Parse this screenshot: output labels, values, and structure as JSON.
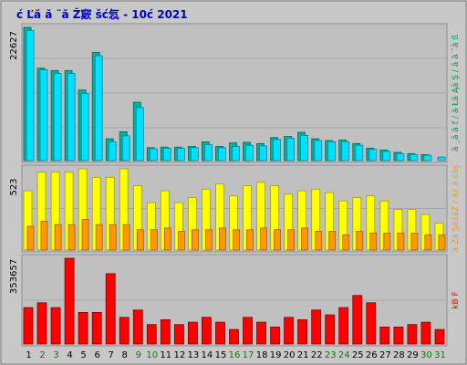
{
  "title": "ć Ľă  ă ¨ă Ž窽 šć忥  - 10ć   2021",
  "colors": {
    "outer_bg": "#c8c8c8",
    "plot_bg": "#c0c0c0",
    "title": "#0000cc",
    "cyan_bar": "#00e0ff",
    "cyan_bar_dark": "#00a0b8",
    "teal_bar": "#00b0a0",
    "yellow_bar": "#ffff00",
    "orange_bar": "#ff9900",
    "red_bar": "#ff0000",
    "weekend_label": "#008000",
    "weekday_label": "#000000"
  },
  "chart_data": [
    {
      "type": "bar",
      "panel": "top",
      "ymax_label": "22627",
      "categories": [
        "1",
        "2",
        "3",
        "4",
        "5",
        "6",
        "7",
        "8",
        "9",
        "10",
        "11",
        "12",
        "13",
        "14",
        "15",
        "16",
        "17",
        "18",
        "19",
        "20",
        "21",
        "22",
        "23",
        "24",
        "25",
        "26",
        "27",
        "28",
        "29",
        "30",
        "31"
      ],
      "weekend_days": [
        "2",
        "3",
        "9",
        "10",
        "16",
        "17",
        "23",
        "24",
        "30",
        "31"
      ],
      "series": [
        {
          "color": "teal",
          "values": [
            22627,
            15700,
            15300,
            15300,
            12000,
            18400,
            3700,
            4900,
            9900,
            2200,
            2300,
            2300,
            2400,
            3200,
            2400,
            3000,
            3100,
            2900,
            3900,
            4100,
            4800,
            3700,
            3400,
            3500,
            2900,
            2100,
            1800,
            1400,
            1200,
            1000,
            0
          ]
        },
        {
          "color": "cyan",
          "values": [
            22100,
            15400,
            14800,
            14800,
            11400,
            17800,
            3200,
            4200,
            9000,
            2000,
            2100,
            2100,
            2200,
            2700,
            2200,
            2400,
            2600,
            2500,
            3600,
            3800,
            4300,
            3400,
            3200,
            3200,
            2600,
            1900,
            1600,
            1200,
            1000,
            900,
            600
          ]
        }
      ],
      "right_legend": "ă ¸ă ­ă ť / ă Łă Ąă Ş / ă ­ă ¨ă ß",
      "right_legend_colors": [
        "#00a050",
        "#00b0a0",
        "#00e0ff"
      ]
    },
    {
      "type": "bar",
      "panel": "middle",
      "ymax_label": "523",
      "series": [
        {
          "color": "yellow",
          "values": [
            350,
            460,
            460,
            460,
            480,
            430,
            430,
            480,
            380,
            280,
            350,
            280,
            310,
            360,
            390,
            320,
            380,
            400,
            380,
            330,
            350,
            360,
            340,
            290,
            310,
            320,
            290,
            240,
            240,
            210,
            160
          ]
        },
        {
          "color": "orange",
          "values": [
            140,
            170,
            150,
            150,
            180,
            150,
            150,
            150,
            120,
            120,
            130,
            110,
            120,
            120,
            130,
            120,
            120,
            130,
            120,
            120,
            130,
            110,
            110,
            90,
            110,
            100,
            100,
            100,
            100,
            90,
            90
          ]
        }
      ],
      "right_legend": "ă Żă ŞăźăŻ / ăż ă śăş",
      "right_legend_colors": [
        "#ff9900",
        "#ffff00"
      ]
    },
    {
      "type": "bar",
      "panel": "bottom",
      "ymax_label": "353657",
      "series": [
        {
          "color": "red",
          "values": [
            150000,
            170000,
            150000,
            353657,
            130000,
            130000,
            290000,
            110000,
            140000,
            80000,
            100000,
            80000,
            90000,
            110000,
            90000,
            60000,
            110000,
            90000,
            70000,
            110000,
            100000,
            140000,
            120000,
            150000,
            200000,
            170000,
            70000,
            70000,
            80000,
            90000,
            60000
          ]
        }
      ],
      "right_legend": "kB F",
      "right_legend_colors": [
        "#ff0000"
      ]
    }
  ]
}
